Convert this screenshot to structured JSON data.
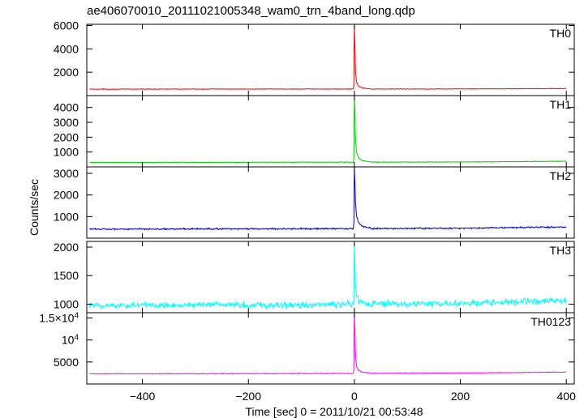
{
  "chart_data": {
    "type": "line",
    "title": "ae406070010_20111021005348_wam0_trn_4band_long.qdp",
    "xlabel": "Time [sec] 0 = 2011/10/21 00:53:48",
    "ylabel": "Counts/sec",
    "xlim": [
      -505,
      415
    ],
    "x_ticks": [
      -400,
      -200,
      0,
      200,
      400
    ],
    "x_tick_labels": [
      "−400",
      "−200",
      "0",
      "200",
      "400"
    ],
    "grid": false,
    "panels": [
      {
        "name": "TH0",
        "color": "#ff0000",
        "ylim": [
          0,
          6100
        ],
        "ticks": [
          2000,
          4000,
          6000
        ],
        "tick_labels": [
          "2000",
          "4000",
          "6000"
        ],
        "baseline": [
          [
            -500,
            550
          ],
          [
            -200,
            560
          ],
          [
            0,
            560
          ],
          [
            200,
            570
          ],
          [
            400,
            600
          ]
        ],
        "noise": 25,
        "burst": [
          [
            -1,
            900
          ],
          [
            0,
            6000
          ],
          [
            1,
            4500
          ],
          [
            2,
            2200
          ],
          [
            4,
            1200
          ],
          [
            8,
            800
          ],
          [
            15,
            650
          ],
          [
            30,
            580
          ]
        ]
      },
      {
        "name": "TH1",
        "color": "#00cc00",
        "ylim": [
          0,
          4800
        ],
        "ticks": [
          1000,
          2000,
          3000,
          4000
        ],
        "tick_labels": [
          "1000",
          "2000",
          "3000",
          "4000"
        ],
        "baseline": [
          [
            -500,
            300
          ],
          [
            -200,
            310
          ],
          [
            0,
            320
          ],
          [
            200,
            330
          ],
          [
            400,
            380
          ]
        ],
        "noise": 20,
        "burst": [
          [
            -1,
            600
          ],
          [
            0,
            4600
          ],
          [
            1,
            3800
          ],
          [
            2,
            2000
          ],
          [
            4,
            1000
          ],
          [
            8,
            600
          ],
          [
            15,
            420
          ],
          [
            30,
            340
          ]
        ]
      },
      {
        "name": "TH2",
        "color": "#0000cc",
        "ylim": [
          0,
          3300
        ],
        "ticks": [
          1000,
          2000,
          3000
        ],
        "tick_labels": [
          "1000",
          "2000",
          "3000"
        ],
        "baseline": [
          [
            -500,
            420
          ],
          [
            -200,
            430
          ],
          [
            0,
            440
          ],
          [
            200,
            460
          ],
          [
            400,
            520
          ]
        ],
        "noise": 35,
        "burst": [
          [
            -1,
            700
          ],
          [
            0,
            3250
          ],
          [
            1,
            2700
          ],
          [
            2,
            1700
          ],
          [
            4,
            1050
          ],
          [
            8,
            700
          ],
          [
            15,
            550
          ],
          [
            30,
            470
          ]
        ]
      },
      {
        "name": "TH3",
        "color": "#00ffff",
        "ylim": [
          850,
          2100
        ],
        "ticks": [
          1000,
          1500,
          2000
        ],
        "tick_labels": [
          "1000",
          "1500",
          "2000"
        ],
        "baseline": [
          [
            -500,
            975
          ],
          [
            -300,
            990
          ],
          [
            -100,
            985
          ],
          [
            0,
            1000
          ],
          [
            200,
            1010
          ],
          [
            300,
            1040
          ],
          [
            400,
            1060
          ]
        ],
        "noise": 55,
        "burst": [
          [
            -1,
            1100
          ],
          [
            0,
            2100
          ],
          [
            1,
            1700
          ],
          [
            2,
            1350
          ],
          [
            4,
            1150
          ],
          [
            8,
            1060
          ],
          [
            20,
            1020
          ]
        ]
      },
      {
        "name": "TH0123",
        "color": "#ff00ff",
        "ylim": [
          0,
          16200
        ],
        "ticks": [
          5000,
          10000,
          15000
        ],
        "tick_labels": [
          "5000",
          "10^4",
          "1.5×10^4"
        ],
        "baseline": [
          [
            -500,
            2300
          ],
          [
            -200,
            2350
          ],
          [
            0,
            2400
          ],
          [
            200,
            2500
          ],
          [
            400,
            2700
          ]
        ],
        "noise": 80,
        "burst": [
          [
            -1,
            3500
          ],
          [
            0,
            16000
          ],
          [
            1,
            12500
          ],
          [
            2,
            7000
          ],
          [
            4,
            4000
          ],
          [
            8,
            3100
          ],
          [
            15,
            2700
          ],
          [
            30,
            2500
          ]
        ]
      }
    ]
  }
}
